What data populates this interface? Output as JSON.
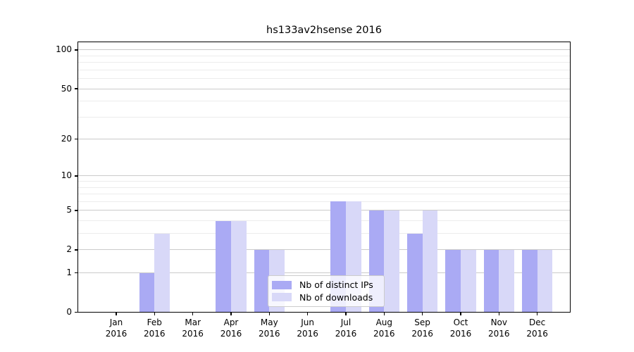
{
  "chart_data": {
    "type": "bar",
    "title": "hs133av2hsense 2016",
    "categories": [
      "Jan",
      "Feb",
      "Mar",
      "Apr",
      "May",
      "Jun",
      "Jul",
      "Aug",
      "Sep",
      "Oct",
      "Nov",
      "Dec"
    ],
    "category_year": "2016",
    "series": [
      {
        "name": "Nb of distinct IPs",
        "color": "#aaaaf4",
        "values": [
          0,
          1,
          0,
          4,
          2,
          0,
          6,
          5,
          3,
          2,
          2,
          2
        ]
      },
      {
        "name": "Nb of downloads",
        "color": "#d8d8f8",
        "values": [
          0,
          3,
          0,
          4,
          2,
          0,
          6,
          5,
          5,
          2,
          2,
          2
        ]
      }
    ],
    "xlabel": "",
    "ylabel": "",
    "yscale": "log1p",
    "ylim": [
      0,
      116
    ],
    "ytick_labels": [
      0,
      1,
      2,
      5,
      10,
      20,
      50,
      100
    ],
    "minor_gridlines": [
      3,
      4,
      6,
      7,
      8,
      9,
      30,
      40,
      60,
      70,
      80,
      90
    ],
    "grid": true,
    "legend_position": "lower center",
    "colors": {
      "major_grid": "#cbcbcb",
      "minor_grid": "#ececec",
      "axis": "#000000"
    }
  }
}
